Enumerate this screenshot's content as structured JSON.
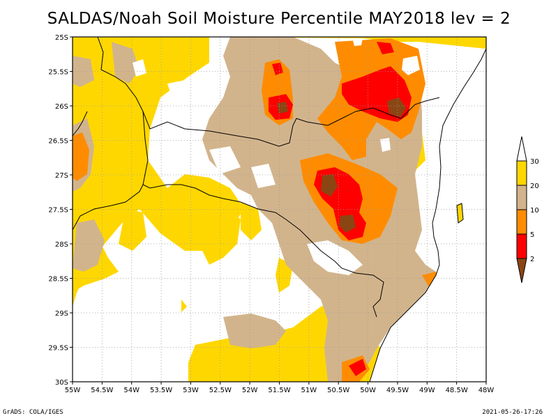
{
  "title": "SALDAS/Noah Soil Moisture Percentile MAY2018 lev = 2",
  "footer": {
    "left": "GrADS: COLA/IGES",
    "right": "2021-05-26-17:26"
  },
  "map": {
    "lon_range": [
      -55,
      -48
    ],
    "lat_range": [
      -30,
      -25
    ],
    "x_ticks": [
      "55W",
      "54.5W",
      "54W",
      "53.5W",
      "53W",
      "52.5W",
      "52W",
      "51.5W",
      "51W",
      "50.5W",
      "50W",
      "49.5W",
      "49W",
      "48.5W",
      "48W"
    ],
    "y_ticks": [
      "25S",
      "25.5S",
      "26S",
      "26.5S",
      "27S",
      "27.5S",
      "28S",
      "28.5S",
      "29S",
      "29.5S",
      "30S"
    ],
    "grid": true,
    "colors": {
      "white": "#ffffff",
      "yellow": "#ffd700",
      "tan": "#d2b48c",
      "orange": "#ff8c00",
      "red": "#ff0000",
      "brown": "#8b4513"
    }
  },
  "legend": {
    "labels": [
      "2",
      "5",
      "10",
      "20",
      "30"
    ],
    "colors": [
      "#8b4513",
      "#ff0000",
      "#ff8c00",
      "#d2b48c",
      "#ffd700",
      "#ffffff"
    ]
  }
}
